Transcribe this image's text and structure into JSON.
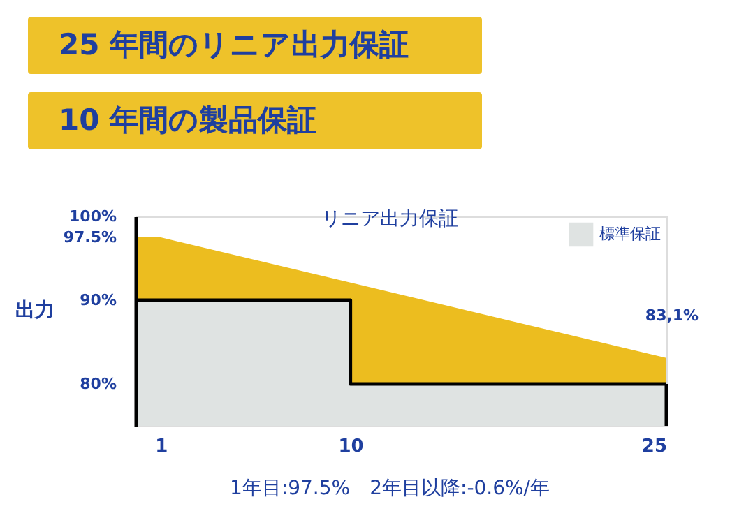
{
  "chart_data": {
    "type": "area",
    "title": "25 年間のリニア出力保証",
    "subtitle": "10 年間の製品保証",
    "ylabel": "出力",
    "annotations": [
      "リニア出力保証",
      "1年目:97.5%　2年目以降:-0.6%/年",
      {
        "text": "83,1%",
        "x": 25,
        "y": 83.1
      }
    ],
    "series": [
      {
        "color": "#ecbd1f",
        "x": [
          -0.2,
          1,
          25
        ],
        "values": [
          97.5,
          97.5,
          83.1
        ]
      },
      {
        "name": "標準保証",
        "color": "#dfe3e2",
        "x": [
          -0.2,
          10,
          10,
          25
        ],
        "values": [
          90,
          90,
          80,
          80
        ]
      }
    ],
    "xlim": [
      -0.2,
      25
    ],
    "xticks": [
      1,
      10,
      25
    ],
    "ylim": [
      75,
      100
    ],
    "yticks": [
      {
        "value": 80,
        "label": "80%"
      },
      {
        "value": 90,
        "label": "90%"
      },
      {
        "value": 97.5,
        "label": "97.5%"
      },
      {
        "value": 100,
        "label": "100%"
      }
    ],
    "grid": false,
    "legend": "top right"
  }
}
